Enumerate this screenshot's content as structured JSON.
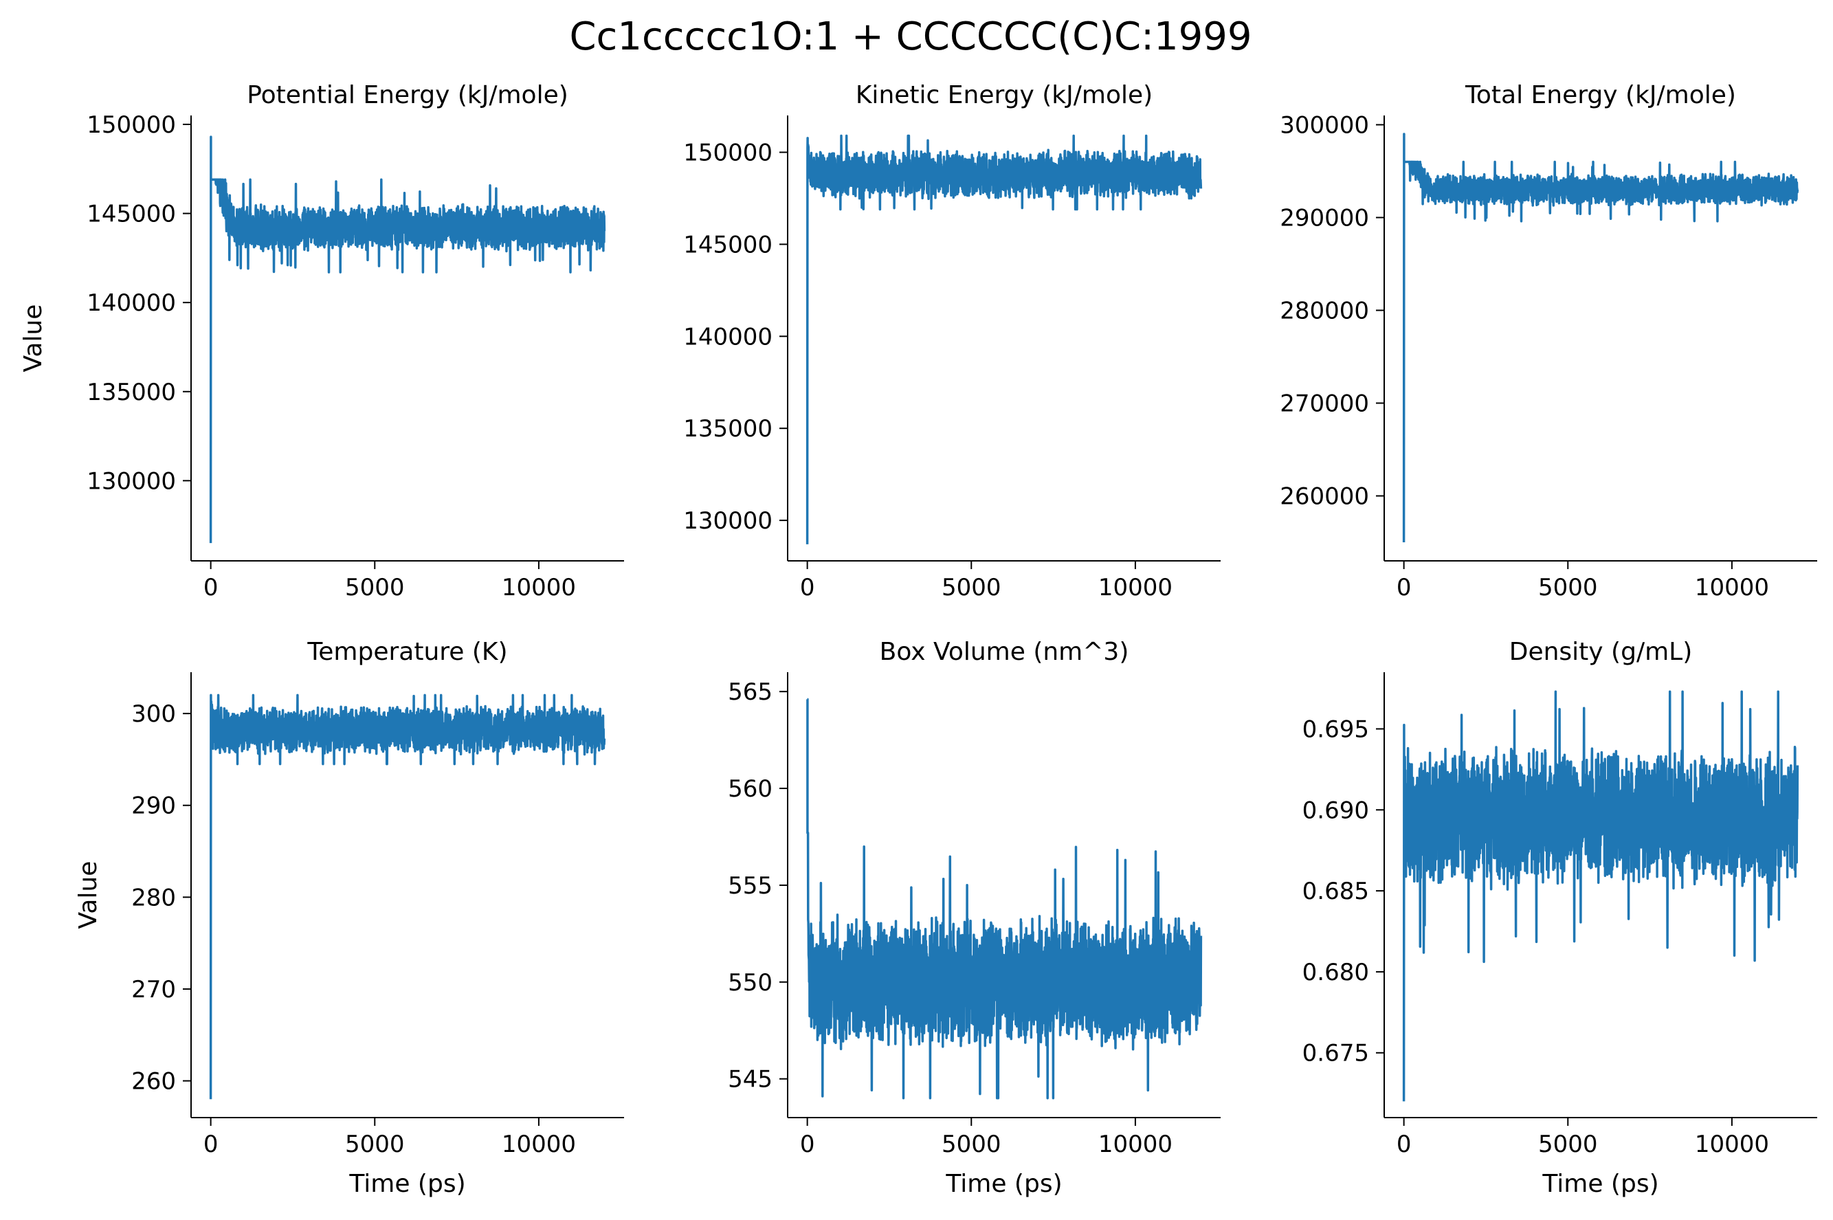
{
  "figure": {
    "title": "Cc1ccccc1O:1 + CCCCCC(C)C:1999",
    "line_color": "#1f77b4"
  },
  "chart_data": [
    {
      "type": "line",
      "title": "Potential Energy (kJ/mole)",
      "xlabel": "",
      "ylabel": "Value",
      "xlim": [
        -600,
        12600
      ],
      "ylim": [
        125500,
        150500
      ],
      "xticks": [
        0,
        5000,
        10000
      ],
      "yticks": [
        130000,
        135000,
        140000,
        145000,
        150000
      ],
      "x_range": [
        0,
        12000
      ],
      "start_value": 126500,
      "initial_peak": 149300,
      "settle_ps": 900,
      "plateau_mean": 144200,
      "noise_amplitude": 1000,
      "min_after_settle": 141700,
      "max_after_settle": 146900
    },
    {
      "type": "line",
      "title": "Kinetic Energy (kJ/mole)",
      "xlabel": "",
      "ylabel": "",
      "xlim": [
        -600,
        12600
      ],
      "ylim": [
        127800,
        152000
      ],
      "xticks": [
        0,
        5000,
        10000
      ],
      "yticks": [
        130000,
        135000,
        140000,
        145000,
        150000
      ],
      "x_range": [
        0,
        12000
      ],
      "start_value": 128700,
      "initial_peak": 150200,
      "settle_ps": 100,
      "plateau_mean": 148800,
      "noise_amplitude": 1000,
      "min_after_settle": 146900,
      "max_after_settle": 150900
    },
    {
      "type": "line",
      "title": "Total Energy (kJ/mole)",
      "xlabel": "",
      "ylabel": "",
      "xlim": [
        -600,
        12600
      ],
      "ylim": [
        253000,
        301000
      ],
      "xticks": [
        0,
        5000,
        10000
      ],
      "yticks": [
        260000,
        270000,
        280000,
        290000,
        300000
      ],
      "x_range": [
        0,
        12000
      ],
      "start_value": 255000,
      "initial_peak": 299000,
      "settle_ps": 1000,
      "plateau_mean": 293000,
      "noise_amplitude": 1300,
      "min_after_settle": 289600,
      "max_after_settle": 296000
    },
    {
      "type": "line",
      "title": "Temperature (K)",
      "xlabel": "Time (ps)",
      "ylabel": "Value",
      "xlim": [
        -600,
        12600
      ],
      "ylim": [
        256000,
        304500
      ],
      "tick_scale": 1000,
      "xticks": [
        0,
        5000,
        10000
      ],
      "yticks": [
        260,
        270,
        280,
        290,
        300
      ],
      "x_range": [
        0,
        12000
      ],
      "start_value": 258,
      "initial_peak": 301,
      "settle_ps": 100,
      "plateau_mean": 298.2,
      "noise_amplitude": 2,
      "min_after_settle": 294.5,
      "max_after_settle": 302
    },
    {
      "type": "line",
      "title": "Box Volume (nm^3)",
      "xlabel": "Time (ps)",
      "ylabel": "",
      "xlim": [
        -600,
        12600
      ],
      "ylim": [
        543,
        566
      ],
      "xticks": [
        0,
        5000,
        10000
      ],
      "yticks": [
        545,
        550,
        555,
        560,
        565
      ],
      "x_range": [
        0,
        12000
      ],
      "start_value": 564.6,
      "initial_peak": 564.6,
      "settle_ps": 60,
      "plateau_mean": 550,
      "noise_amplitude": 2.6,
      "min_after_settle": 544,
      "max_after_settle": 557.7
    },
    {
      "type": "line",
      "title": "Density (g/mL)",
      "xlabel": "Time (ps)",
      "ylabel": "",
      "xlim": [
        -600,
        12600
      ],
      "ylim": [
        0.671,
        0.6985
      ],
      "xticks": [
        0,
        5000,
        10000
      ],
      "yticks": [
        0.675,
        0.68,
        0.685,
        0.69,
        0.695
      ],
      "x_range": [
        0,
        12000
      ],
      "start_value": 0.672,
      "initial_peak": 0.694,
      "settle_ps": 60,
      "plateau_mean": 0.6895,
      "noise_amplitude": 0.0033,
      "min_after_settle": 0.6802,
      "max_after_settle": 0.6973
    }
  ]
}
